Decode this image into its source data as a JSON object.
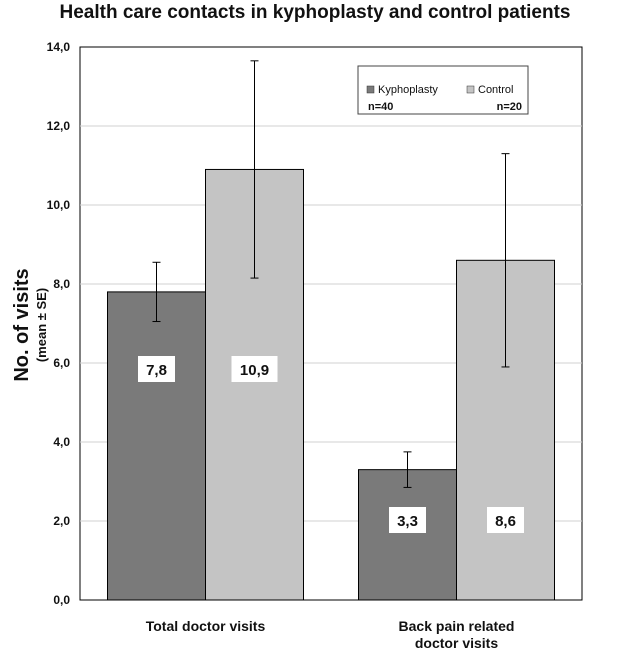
{
  "chart_data": {
    "type": "bar",
    "title": "Health care contacts in kyphoplasty and control patients",
    "ylabel": "No. of visits",
    "ylabel_sub": "(mean ± SE)",
    "ylim": [
      0,
      14
    ],
    "yticks": [
      "0,0",
      "2,0",
      "4,0",
      "6,0",
      "8,0",
      "10,0",
      "12,0",
      "14,0"
    ],
    "categories": [
      [
        "Total doctor visits"
      ],
      [
        "Back pain related",
        "doctor visits"
      ]
    ],
    "grid": true,
    "legend_position": "top-right",
    "series": [
      {
        "name": "Kyphoplasty",
        "n_label": "n=40",
        "color": "#7a7a7a",
        "values": [
          7.8,
          3.3
        ],
        "errors": [
          0.75,
          0.45
        ],
        "value_labels": [
          "7,8",
          "3,3"
        ]
      },
      {
        "name": "Control",
        "n_label": "n=20",
        "color": "#c4c4c4",
        "values": [
          10.9,
          8.6
        ],
        "errors": [
          2.75,
          2.7
        ],
        "value_labels": [
          "10,9",
          "8,6"
        ]
      }
    ]
  }
}
